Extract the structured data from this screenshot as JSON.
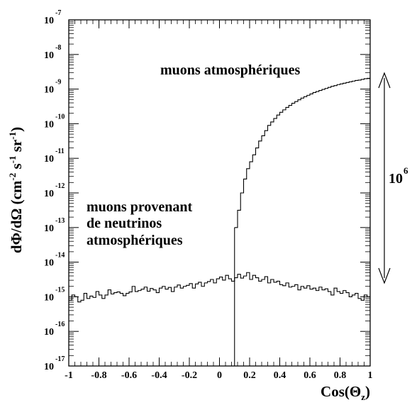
{
  "chart_data": {
    "type": "line",
    "title": "",
    "xlabel": "Cos(Θz)",
    "xlabel_parts": {
      "main": "Cos(Θ",
      "sub": "z",
      "close": ")"
    },
    "ylabel": "dΦ/dΩ (cm-2 s-1 sr-1)",
    "xlim": [
      -1,
      1
    ],
    "ylim": [
      1e-17,
      1e-07
    ],
    "yscale": "log",
    "grid": false,
    "x_ticks": [
      "-1",
      "-0.8",
      "-0.6",
      "-0.4",
      "-0.2",
      "0",
      "0.2",
      "0.4",
      "0.6",
      "0.8",
      "1"
    ],
    "y_tick_base": "10",
    "y_tick_exponents": [
      "-7",
      "-8",
      "-9",
      "-10",
      "-11",
      "-12",
      "-13",
      "-14",
      "-15",
      "-16",
      "-17"
    ],
    "annotations": {
      "atmospheric": "muons atmosphériques",
      "neutrino_line1": "muons provenant",
      "neutrino_line2": "de neutrinos",
      "neutrino_line3": "atmosphériques",
      "range_base": "10",
      "range_exp": "6"
    },
    "vertical_line_x": 0.1,
    "series": [
      {
        "name": "muons atmosphériques",
        "x_start": 0.1,
        "bin_width": 0.02,
        "log10_values": [
          -13.0,
          -12.5,
          -12.0,
          -11.6,
          -11.3,
          -11.1,
          -10.9,
          -10.7,
          -10.5,
          -10.35,
          -10.2,
          -10.05,
          -9.95,
          -9.85,
          -9.75,
          -9.67,
          -9.6,
          -9.53,
          -9.47,
          -9.41,
          -9.36,
          -9.31,
          -9.26,
          -9.22,
          -9.18,
          -9.14,
          -9.1,
          -9.07,
          -9.04,
          -9.01,
          -8.98,
          -8.95,
          -8.92,
          -8.9,
          -8.87,
          -8.85,
          -8.83,
          -8.81,
          -8.79,
          -8.77,
          -8.75,
          -8.74,
          -8.72,
          -8.7,
          -8.69
        ]
      },
      {
        "name": "muons provenant de neutrinos atmosphériques",
        "x_start": -1.0,
        "bin_width": 0.02,
        "log10_values": [
          -15.1,
          -14.95,
          -15.0,
          -15.15,
          -15.1,
          -14.9,
          -15.05,
          -14.98,
          -15.02,
          -14.85,
          -14.95,
          -15.05,
          -14.95,
          -14.8,
          -14.92,
          -14.88,
          -14.86,
          -14.9,
          -14.97,
          -14.9,
          -14.86,
          -14.7,
          -14.85,
          -14.82,
          -14.78,
          -14.72,
          -14.84,
          -14.76,
          -14.8,
          -14.88,
          -14.75,
          -14.7,
          -14.78,
          -14.73,
          -14.85,
          -14.72,
          -14.66,
          -14.75,
          -14.7,
          -14.67,
          -14.62,
          -14.75,
          -14.63,
          -14.58,
          -14.7,
          -14.6,
          -14.56,
          -14.5,
          -14.6,
          -14.48,
          -14.43,
          -14.52,
          -14.38,
          -14.48,
          -14.55,
          -14.45,
          -14.35,
          -14.46,
          -14.4,
          -14.3,
          -14.5,
          -14.38,
          -14.45,
          -14.55,
          -14.5,
          -14.42,
          -14.6,
          -14.5,
          -14.58,
          -14.55,
          -14.65,
          -14.68,
          -14.6,
          -14.72,
          -14.7,
          -14.65,
          -14.8,
          -14.7,
          -14.75,
          -14.68,
          -14.78,
          -14.75,
          -14.82,
          -14.72,
          -14.8,
          -14.77,
          -14.85,
          -14.95,
          -14.75,
          -14.85,
          -14.9,
          -14.82,
          -14.88,
          -15.0,
          -14.95,
          -14.9,
          -15.05,
          -15.1,
          -14.95,
          -15.0
        ]
      }
    ]
  }
}
